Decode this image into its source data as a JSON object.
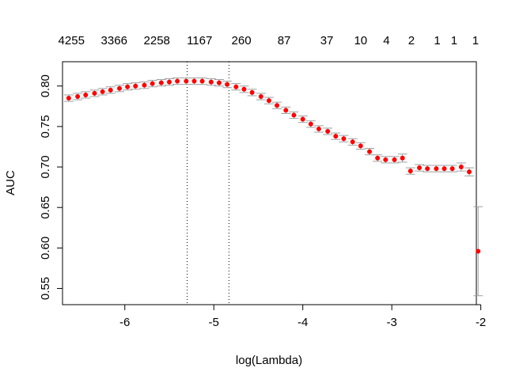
{
  "chart_data": {
    "type": "scatter",
    "title": "",
    "xlabel": "log(Lambda)",
    "ylabel": "AUC",
    "xlim": [
      -6.7,
      -2.05
    ],
    "ylim": [
      0.53,
      0.83
    ],
    "x_ticks": [
      -6,
      -5,
      -4,
      -3,
      -2
    ],
    "x_tick_labels": [
      "-6",
      "-5",
      "-4",
      "-3",
      "-2"
    ],
    "y_ticks": [
      0.55,
      0.6,
      0.65,
      0.7,
      0.75,
      0.8
    ],
    "y_tick_labels": [
      "0.55",
      "0.60",
      "0.65",
      "0.70",
      "0.75",
      "0.80"
    ],
    "top_axis_labels": [
      {
        "x": -6.6,
        "label": "4255"
      },
      {
        "x": -6.12,
        "label": "3366"
      },
      {
        "x": -5.64,
        "label": "2258"
      },
      {
        "x": -5.16,
        "label": "1167"
      },
      {
        "x": -4.69,
        "label": "260"
      },
      {
        "x": -4.21,
        "label": "87"
      },
      {
        "x": -3.73,
        "label": "37"
      },
      {
        "x": -3.35,
        "label": "10"
      },
      {
        "x": -3.06,
        "label": "4"
      },
      {
        "x": -2.78,
        "label": "2"
      },
      {
        "x": -2.49,
        "label": "1"
      },
      {
        "x": -2.3,
        "label": "1"
      },
      {
        "x": -2.06,
        "label": "1"
      }
    ],
    "vlines": [
      -5.3,
      -4.83
    ],
    "colors": {
      "points": "#ff0000",
      "error_bars": "#a0a0a0",
      "vlines": "#000000"
    },
    "grid": false,
    "series": [
      {
        "x": [
          -6.63,
          -6.53,
          -6.44,
          -6.34,
          -6.25,
          -6.16,
          -6.06,
          -5.97,
          -5.88,
          -5.78,
          -5.69,
          -5.59,
          -5.5,
          -5.41,
          -5.31,
          -5.22,
          -5.13,
          -5.03,
          -4.94,
          -4.85,
          -4.75,
          -4.66,
          -4.57,
          -4.47,
          -4.38,
          -4.29,
          -4.19,
          -4.1,
          -4.0,
          -3.91,
          -3.82,
          -3.72,
          -3.63,
          -3.54,
          -3.44,
          -3.35,
          -3.25,
          -3.16,
          -3.07,
          -2.97,
          -2.88,
          -2.79,
          -2.69,
          -2.6,
          -2.5,
          -2.41,
          -2.32,
          -2.22,
          -2.13,
          -2.03
        ],
        "y": [
          0.785,
          0.787,
          0.789,
          0.791,
          0.793,
          0.795,
          0.797,
          0.799,
          0.8,
          0.801,
          0.803,
          0.804,
          0.805,
          0.806,
          0.806,
          0.806,
          0.806,
          0.805,
          0.804,
          0.802,
          0.799,
          0.796,
          0.792,
          0.787,
          0.782,
          0.776,
          0.77,
          0.764,
          0.759,
          0.753,
          0.747,
          0.744,
          0.738,
          0.735,
          0.731,
          0.726,
          0.719,
          0.711,
          0.709,
          0.709,
          0.711,
          0.695,
          0.699,
          0.698,
          0.698,
          0.698,
          0.698,
          0.7,
          0.694,
          0.596
        ],
        "err": [
          0.004,
          0.004,
          0.004,
          0.004,
          0.004,
          0.004,
          0.004,
          0.004,
          0.004,
          0.004,
          0.004,
          0.004,
          0.004,
          0.004,
          0.004,
          0.004,
          0.004,
          0.004,
          0.004,
          0.004,
          0.004,
          0.004,
          0.004,
          0.004,
          0.004,
          0.004,
          0.004,
          0.004,
          0.004,
          0.004,
          0.004,
          0.004,
          0.004,
          0.004,
          0.004,
          0.004,
          0.004,
          0.004,
          0.004,
          0.004,
          0.005,
          0.004,
          0.004,
          0.004,
          0.004,
          0.004,
          0.004,
          0.005,
          0.005,
          0.055
        ]
      }
    ]
  }
}
